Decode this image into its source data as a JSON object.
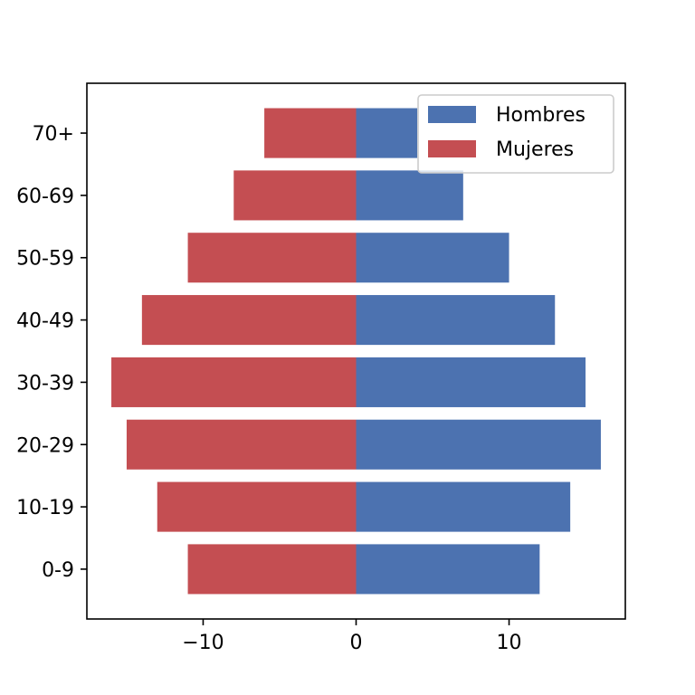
{
  "chart_data": {
    "type": "bar",
    "orientation": "horizontal",
    "categories": [
      "0-9",
      "10-19",
      "20-29",
      "30-39",
      "40-49",
      "50-59",
      "60-69",
      "70+"
    ],
    "series": [
      {
        "name": "Hombres",
        "values": [
          12,
          14,
          16,
          15,
          13,
          10,
          7,
          4
        ],
        "color": "#4c72b0"
      },
      {
        "name": "Mujeres",
        "values": [
          -11,
          -13,
          -15,
          -16,
          -14,
          -11,
          -8,
          -6
        ],
        "color": "#c44e52"
      }
    ],
    "x_ticks": [
      -10,
      0,
      10
    ],
    "x_tick_labels": [
      "−10",
      "0",
      "10"
    ],
    "xlim": [
      -17.6,
      17.6
    ],
    "title": "",
    "xlabel": "",
    "ylabel": "",
    "legend_position": "top-right",
    "grid": false
  }
}
